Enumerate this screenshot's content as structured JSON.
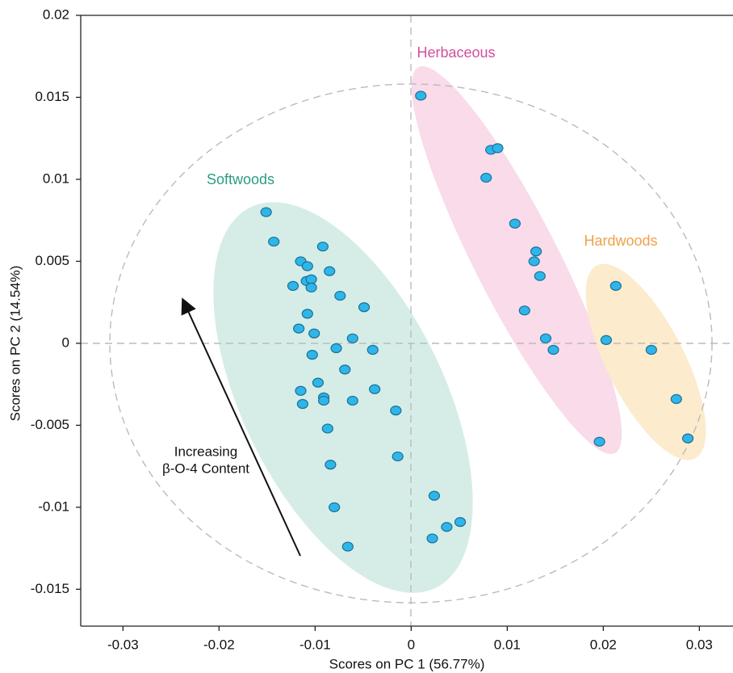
{
  "chart_data": {
    "type": "scatter",
    "xlabel": "Scores on PC 1 (56.77%)",
    "ylabel": "Scores on PC 2 (14.54%)",
    "annotations": [
      "Softwoods",
      "Herbaceous",
      "Hardwoods",
      "Increasing",
      "β-O-4 Content"
    ],
    "color": "#2fb6e8",
    "x": [
      -0.0151,
      -0.0143,
      -0.0115,
      -0.0108,
      -0.0092,
      -0.0085,
      -0.0123,
      -0.0109,
      -0.0104,
      -0.0104,
      -0.0074,
      -0.0049,
      -0.0108,
      -0.0117,
      -0.0101,
      -0.0061,
      -0.0103,
      -0.0078,
      -0.004,
      -0.0069,
      -0.0097,
      -0.0038,
      -0.0115,
      -0.0091,
      -0.0091,
      -0.0061,
      -0.0113,
      -0.0016,
      -0.0087,
      -0.0014,
      -0.0084,
      0.0024,
      -0.008,
      0.0051,
      0.0037,
      0.0022,
      -0.0066,
      0.001,
      0.0083,
      0.009,
      0.0078,
      0.0108,
      0.013,
      0.0128,
      0.0134,
      0.0118,
      0.014,
      0.0148,
      0.0196,
      0.0213,
      0.0203,
      0.025,
      0.0276,
      0.0288
    ],
    "values": [
      0.008,
      0.0062,
      0.005,
      0.0047,
      0.0059,
      0.0044,
      0.0035,
      0.0038,
      0.0039,
      0.0034,
      0.0029,
      0.0022,
      0.0018,
      0.0009,
      0.0006,
      0.0003,
      -0.0007,
      -0.0003,
      -0.0004,
      -0.0016,
      -0.0024,
      -0.0028,
      -0.0029,
      -0.0033,
      -0.0035,
      -0.0035,
      -0.0037,
      -0.0041,
      -0.0052,
      -0.0069,
      -0.0074,
      -0.0093,
      -0.01,
      -0.0109,
      -0.0112,
      -0.0119,
      -0.0124,
      0.0151,
      0.0118,
      0.0119,
      0.0101,
      0.0073,
      0.0056,
      0.005,
      0.0041,
      0.002,
      0.0003,
      -0.0004,
      -0.006,
      0.0035,
      0.0002,
      -0.0004,
      -0.0034,
      -0.0058
    ],
    "xlim": [
      -0.0344,
      0.0335
    ],
    "ylim": [
      -0.01725,
      0.02
    ],
    "xticks": [
      -0.03,
      -0.02,
      -0.01,
      0,
      0.01,
      0.02,
      0.03
    ],
    "yticks": [
      0.02,
      0.015,
      0.01,
      0.005,
      0,
      -0.005,
      -0.01,
      -0.015
    ]
  }
}
